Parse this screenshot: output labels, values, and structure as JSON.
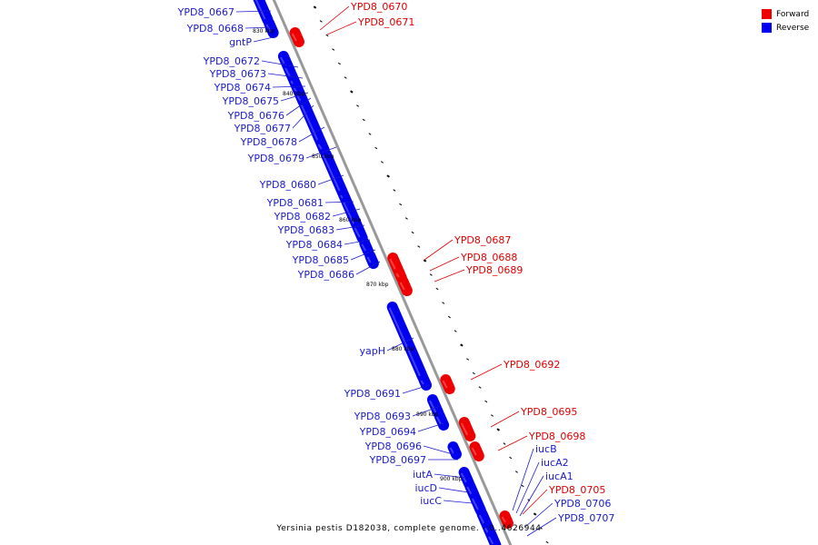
{
  "legend": {
    "forward_label": "Forward",
    "reverse_label": "Reverse"
  },
  "colors": {
    "forward": "#ee0000",
    "reverse": "#0000ee",
    "forward_label": "#dd0000",
    "reverse_label": "#1a1acc",
    "axis": "#999999",
    "ticks": "#000000"
  },
  "caption": "Yersinia pestis D182038, complete genome. - 0..4626944",
  "tick_labels": [
    "830 kbp",
    "840 kbp",
    "850 kbp",
    "860 kbp",
    "870 kbp",
    "880 kbp",
    "890 kbp",
    "900 kbp"
  ],
  "genes_reverse": [
    "YPD8_0667",
    "YPD8_0668",
    "gntP",
    "YPD8_0672",
    "YPD8_0673",
    "YPD8_0674",
    "YPD8_0675",
    "YPD8_0676",
    "YPD8_0677",
    "YPD8_0678",
    "YPD8_0679",
    "YPD8_0680",
    "YPD8_0681",
    "YPD8_0682",
    "YPD8_0683",
    "YPD8_0684",
    "YPD8_0685",
    "YPD8_0686",
    "yapH",
    "YPD8_0691",
    "YPD8_0693",
    "YPD8_0694",
    "YPD8_0696",
    "YPD8_0697",
    "iutA",
    "iucD",
    "iucC",
    "iucB",
    "iucA2",
    "iucA1",
    "YPD8_0706",
    "YPD8_0707"
  ],
  "genes_forward": [
    "YPD8_0670",
    "YPD8_0671",
    "YPD8_0687",
    "YPD8_0688",
    "YPD8_0689",
    "YPD8_0692",
    "YPD8_0695",
    "YPD8_0698",
    "YPD8_0705"
  ]
}
